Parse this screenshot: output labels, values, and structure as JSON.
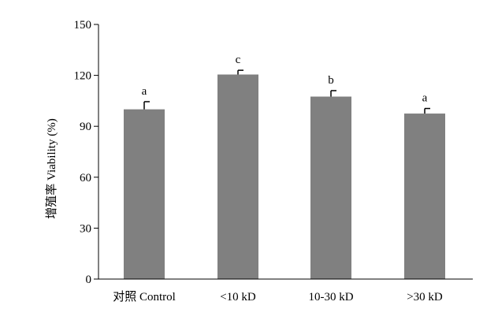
{
  "chart_data": {
    "type": "bar",
    "title": "",
    "xlabel": "",
    "ylabel": "增殖率 Viability (%)",
    "ylim": [
      0,
      150
    ],
    "yticks": [
      0,
      30,
      60,
      90,
      120,
      150
    ],
    "grid": false,
    "categories": [
      "对照 Control",
      "<10 kD",
      "10-30 kD",
      ">30 kD"
    ],
    "values": [
      100,
      120.5,
      107.5,
      97.5
    ],
    "errors": [
      4.5,
      2.5,
      3.5,
      3.0
    ],
    "significance_labels": [
      "a",
      "c",
      "b",
      "a"
    ],
    "bar_color": "#808080"
  }
}
